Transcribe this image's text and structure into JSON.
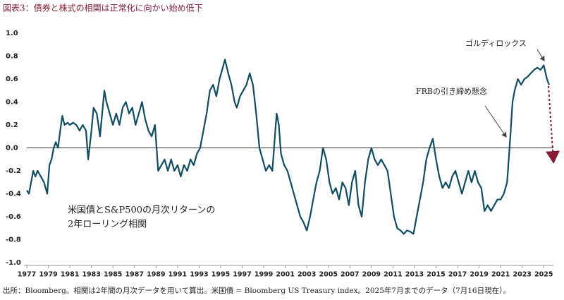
{
  "chart_data": {
    "type": "line",
    "title": "図表3：債券と株式の相関は正常化に向かい始め低下",
    "annotation_lines": [
      "米国債とS&P500の月次リターンの",
      "2年ローリング相関"
    ],
    "annotations": [
      "ゴルディロックス",
      "FRBの引き締め懸念"
    ],
    "footnote": "出所：Bloomberg。相関は2年間の月次データを用いて算出。米国債 = Bloomberg US Treasury index。2025年7月までのデータ（7月16日現在）。",
    "color": "#0e4d64",
    "x": [
      1977.0,
      1977.2,
      1977.4,
      1977.6,
      1977.8,
      1978.0,
      1978.3,
      1978.6,
      1978.9,
      1979.1,
      1979.3,
      1979.5,
      1979.7,
      1979.9,
      1980.1,
      1980.3,
      1980.5,
      1980.8,
      1981.0,
      1981.3,
      1981.6,
      1981.9,
      1982.2,
      1982.5,
      1982.7,
      1983.0,
      1983.2,
      1983.5,
      1983.8,
      1984.0,
      1984.2,
      1984.4,
      1984.7,
      1985.0,
      1985.3,
      1985.6,
      1985.9,
      1986.2,
      1986.5,
      1986.8,
      1987.1,
      1987.4,
      1987.7,
      1988.0,
      1988.3,
      1988.6,
      1988.9,
      1989.2,
      1989.5,
      1989.8,
      1990.1,
      1990.4,
      1990.7,
      1991.0,
      1991.3,
      1991.6,
      1991.9,
      1992.2,
      1992.5,
      1992.8,
      1993.1,
      1993.4,
      1993.7,
      1994.0,
      1994.3,
      1994.6,
      1994.9,
      1995.2,
      1995.4,
      1995.7,
      1996.0,
      1996.3,
      1996.5,
      1996.8,
      1997.1,
      1997.4,
      1997.7,
      1998.0,
      1998.3,
      1998.6,
      1998.9,
      1999.2,
      1999.5,
      1999.8,
      2000.0,
      2000.2,
      2000.4,
      2000.6,
      2000.9,
      2001.2,
      2001.5,
      2001.8,
      2002.1,
      2002.4,
      2002.7,
      2003.0,
      2003.3,
      2003.6,
      2003.9,
      2004.2,
      2004.5,
      2004.8,
      2005.1,
      2005.4,
      2005.7,
      2006.0,
      2006.3,
      2006.6,
      2006.9,
      2007.2,
      2007.5,
      2007.8,
      2008.1,
      2008.4,
      2008.7,
      2009.0,
      2009.3,
      2009.6,
      2009.9,
      2010.2,
      2010.5,
      2010.8,
      2011.1,
      2011.4,
      2011.7,
      2012.0,
      2012.3,
      2012.6,
      2012.9,
      2013.2,
      2013.5,
      2013.8,
      2014.1,
      2014.4,
      2014.7,
      2015.0,
      2015.3,
      2015.6,
      2015.9,
      2016.2,
      2016.5,
      2016.8,
      2017.1,
      2017.4,
      2017.7,
      2018.0,
      2018.3,
      2018.6,
      2018.9,
      2019.2,
      2019.5,
      2019.8,
      2020.1,
      2020.4,
      2020.7,
      2021.0,
      2021.3,
      2021.6,
      2021.9,
      2022.1,
      2022.3,
      2022.6,
      2022.9,
      2023.2,
      2023.5,
      2023.8,
      2024.1,
      2024.4,
      2024.7,
      2025.0,
      2025.3,
      2025.5
    ],
    "values": [
      -0.37,
      -0.4,
      -0.3,
      -0.2,
      -0.25,
      -0.2,
      -0.25,
      -0.3,
      -0.4,
      -0.15,
      -0.1,
      0.0,
      0.05,
      0.0,
      0.15,
      0.28,
      0.2,
      0.22,
      0.2,
      0.22,
      0.2,
      0.15,
      0.2,
      0.15,
      -0.1,
      0.15,
      0.35,
      0.3,
      0.1,
      0.3,
      0.5,
      0.4,
      0.3,
      0.2,
      0.3,
      0.2,
      0.35,
      0.4,
      0.3,
      0.35,
      0.2,
      0.3,
      0.4,
      0.25,
      0.15,
      0.1,
      0.2,
      -0.2,
      -0.15,
      -0.1,
      -0.2,
      -0.1,
      -0.2,
      -0.15,
      -0.25,
      -0.15,
      -0.2,
      -0.1,
      -0.15,
      -0.05,
      0.0,
      0.15,
      0.3,
      0.5,
      0.55,
      0.45,
      0.6,
      0.7,
      0.77,
      0.65,
      0.55,
      0.4,
      0.35,
      0.45,
      0.5,
      0.55,
      0.65,
      0.55,
      0.3,
      0.0,
      -0.1,
      -0.2,
      -0.15,
      -0.2,
      0.05,
      0.3,
      0.2,
      -0.05,
      -0.15,
      -0.2,
      -0.3,
      -0.4,
      -0.5,
      -0.6,
      -0.65,
      -0.72,
      -0.6,
      -0.45,
      -0.3,
      -0.2,
      0.0,
      -0.1,
      -0.3,
      -0.4,
      -0.35,
      -0.45,
      -0.3,
      -0.35,
      -0.5,
      -0.3,
      -0.2,
      -0.5,
      -0.6,
      -0.3,
      -0.1,
      0.0,
      -0.1,
      -0.15,
      -0.1,
      -0.15,
      -0.2,
      -0.4,
      -0.6,
      -0.7,
      -0.72,
      -0.75,
      -0.72,
      -0.73,
      -0.75,
      -0.6,
      -0.45,
      -0.3,
      -0.1,
      0.0,
      0.08,
      -0.1,
      -0.25,
      -0.35,
      -0.3,
      -0.35,
      -0.25,
      -0.2,
      -0.3,
      -0.4,
      -0.3,
      -0.2,
      -0.3,
      -0.2,
      -0.3,
      -0.35,
      -0.55,
      -0.5,
      -0.55,
      -0.5,
      -0.45,
      -0.45,
      -0.4,
      -0.3,
      0.1,
      0.4,
      0.5,
      0.6,
      0.55,
      0.6,
      0.62,
      0.65,
      0.68,
      0.7,
      0.68,
      0.72,
      0.6,
      0.55
    ],
    "xlim": [
      1977,
      2025.9
    ],
    "xticks": [
      1977,
      1979,
      1981,
      1983,
      1985,
      1987,
      1989,
      1991,
      1993,
      1995,
      1997,
      1999,
      2001,
      2003,
      2005,
      2007,
      2009,
      2011,
      2013,
      2015,
      2017,
      2019,
      2021,
      2023,
      2025
    ],
    "ylim": [
      -1.0,
      1.0
    ],
    "yticks": [
      {
        "value": 1.0,
        "label": "1.0"
      },
      {
        "value": 0.8,
        "label": "0.8"
      },
      {
        "value": 0.6,
        "label": "0.6"
      },
      {
        "value": 0.4,
        "label": "0.4"
      },
      {
        "value": 0.2,
        "label": "0.2"
      },
      {
        "value": 0.0,
        "label": "0.0"
      },
      {
        "value": -0.2,
        "label": "-0.2"
      },
      {
        "value": -0.4,
        "label": "-0.4"
      },
      {
        "value": -0.6,
        "label": "-0.6"
      },
      {
        "value": -0.8,
        "label": "-0.8"
      },
      {
        "value": -1.0,
        "label": "-1.0"
      }
    ],
    "grid": false
  }
}
